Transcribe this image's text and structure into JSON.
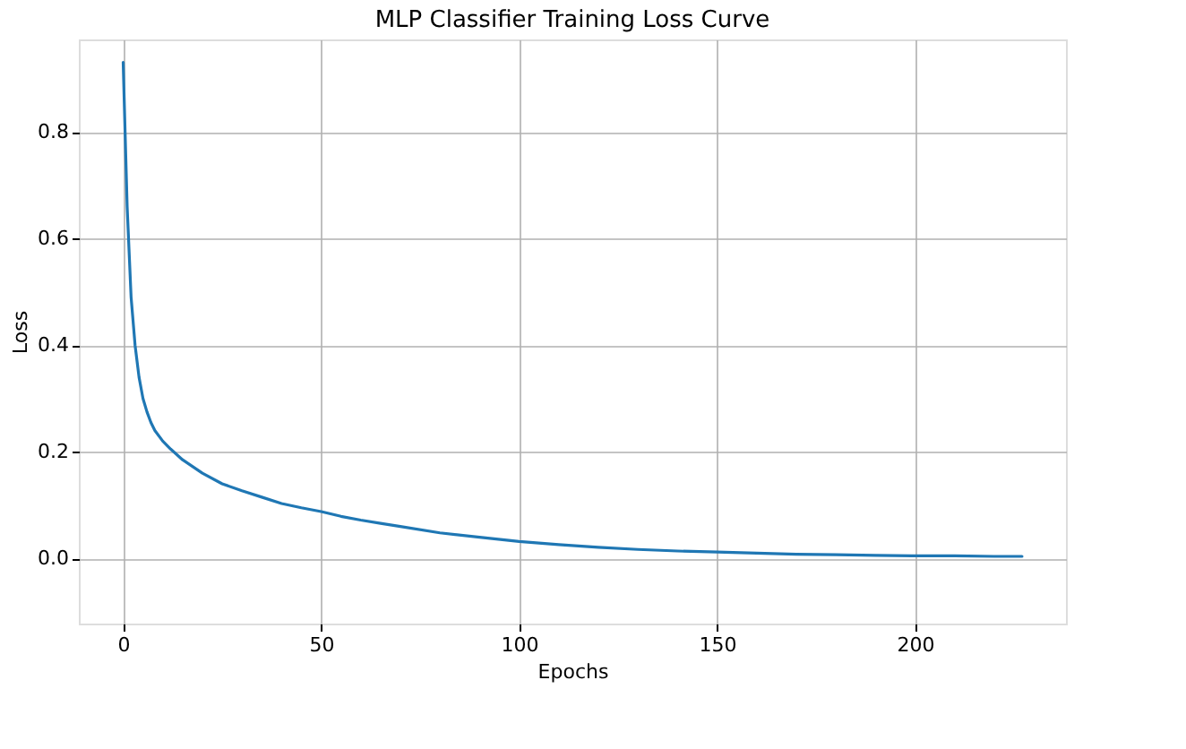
{
  "chart_data": {
    "type": "line",
    "title": "MLP Classifier Training Loss Curve",
    "xlabel": "Epochs",
    "ylabel": "Loss",
    "x": [
      0,
      1,
      2,
      3,
      4,
      5,
      6,
      7,
      8,
      10,
      12,
      15,
      18,
      20,
      25,
      30,
      35,
      40,
      45,
      50,
      55,
      60,
      65,
      70,
      80,
      90,
      100,
      110,
      120,
      130,
      140,
      150,
      160,
      170,
      180,
      190,
      200,
      210,
      220,
      227
    ],
    "series": [
      {
        "color": "#1f77b4",
        "values": [
          0.93,
          0.66,
          0.49,
          0.4,
          0.34,
          0.3,
          0.275,
          0.255,
          0.24,
          0.22,
          0.205,
          0.185,
          0.17,
          0.16,
          0.14,
          0.127,
          0.115,
          0.103,
          0.095,
          0.088,
          0.079,
          0.072,
          0.066,
          0.06,
          0.048,
          0.04,
          0.032,
          0.026,
          0.021,
          0.017,
          0.014,
          0.012,
          0.01,
          0.008,
          0.007,
          0.006,
          0.005,
          0.005,
          0.004,
          0.004
        ]
      }
    ],
    "xlim": [
      -11.2,
      238.1
    ],
    "ylim": [
      -0.122,
      0.973
    ],
    "xticks": [
      0,
      50,
      100,
      150,
      200
    ],
    "yticks": [
      {
        "value": 0,
        "label": "0.0"
      },
      {
        "value": 0.2,
        "label": "0.2"
      },
      {
        "value": 0.4,
        "label": "0.4"
      },
      {
        "value": 0.6,
        "label": "0.6"
      },
      {
        "value": 0.8,
        "label": "0.8"
      }
    ],
    "grid": true,
    "marker": "none",
    "line_style": "solid"
  }
}
